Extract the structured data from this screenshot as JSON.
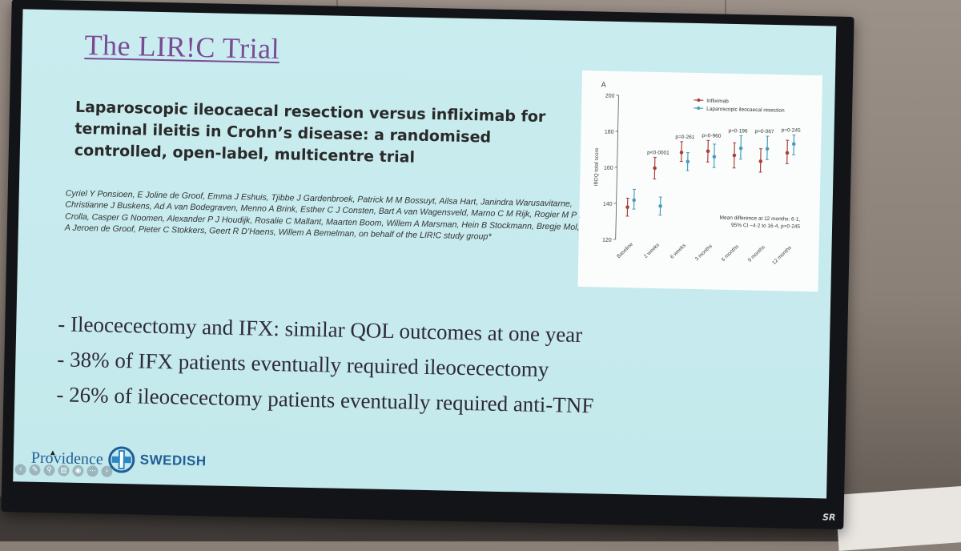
{
  "slide": {
    "title": "The LIR!C Trial",
    "paper_title": "Laparoscopic ileocaecal resection versus infliximab for terminal ileitis in Crohn’s disease: a randomised controlled, open-label, multicentre trial",
    "authors": "Cyriel Y Ponsioen, E Joline de Groof, Emma J Eshuis, Tjibbe J Gardenbroek, Patrick M M Bossuyt, Ailsa Hart, Janindra Warusavitarne, Christianne J Buskens, Ad A van Bodegraven, Menno A Brink, Esther C J Consten, Bart A van Wagensveld, Marno C M Rijk, Rogier M P H Crolla, Casper G Noomen, Alexander P J Houdijk, Rosalie C Mallant, Maarten Boom, Willem A Marsman, Hein B Stockmann, Bregje Mol, A Jeroen de Groof, Pieter C Stokkers, Geert R D’Haens, Willem A Bemelman, on behalf of the LIR!C study group*",
    "bullets": [
      "- Ileocecectomy and IFX: similar QOL outcomes at one year",
      "- 38% of IFX patients eventually required ileocecectomy",
      "- 26% of ileocecectomy patients eventually required anti-TNF"
    ]
  },
  "logo": {
    "left_text": "Providence",
    "right_text": "SWEDISH",
    "icon": "providence-swedish-cross-icon"
  },
  "toolbar": {
    "icons": [
      "prev-slide-icon",
      "pen-icon",
      "zoom-icon",
      "subtitles-icon",
      "camera-icon",
      "more-icon",
      "next-slide-icon"
    ]
  },
  "screen_brand": "SR",
  "chart_data": {
    "type": "scatter",
    "panel_label": "A",
    "ylabel": "IBDQ total score",
    "ylim": [
      120,
      200
    ],
    "yticks": [
      120,
      140,
      160,
      180,
      200
    ],
    "categories": [
      "Baseline",
      "2 weeks",
      "6 weeks",
      "3 months",
      "6 months",
      "9 months",
      "12 months"
    ],
    "series": [
      {
        "name": "Infliximab",
        "color": "#a8403a",
        "values": [
          138,
          160,
          169,
          170,
          168,
          165,
          170
        ],
        "ci_low": [
          133,
          154,
          164,
          164,
          161,
          159,
          164
        ],
        "ci_high": [
          143,
          166,
          175,
          176,
          175,
          172,
          177
        ]
      },
      {
        "name": "Laparoscopic ileocaecal resection",
        "color": "#4a9cb8",
        "values": [
          142,
          139,
          164,
          167,
          172,
          172,
          175
        ],
        "ci_low": [
          137,
          134,
          159,
          161,
          166,
          166,
          169
        ],
        "ci_high": [
          148,
          144,
          169,
          174,
          179,
          179,
          180
        ]
      }
    ],
    "pvalues": [
      "p<0·0001",
      "p=0·261",
      "p=0·960",
      "p=0·196",
      "p=0·067",
      "p=0·245"
    ],
    "annotation_line1": "Mean difference at 12 months: 6·1,",
    "annotation_line2": "95% CI −4·2 to 16·4, p=0·245"
  }
}
